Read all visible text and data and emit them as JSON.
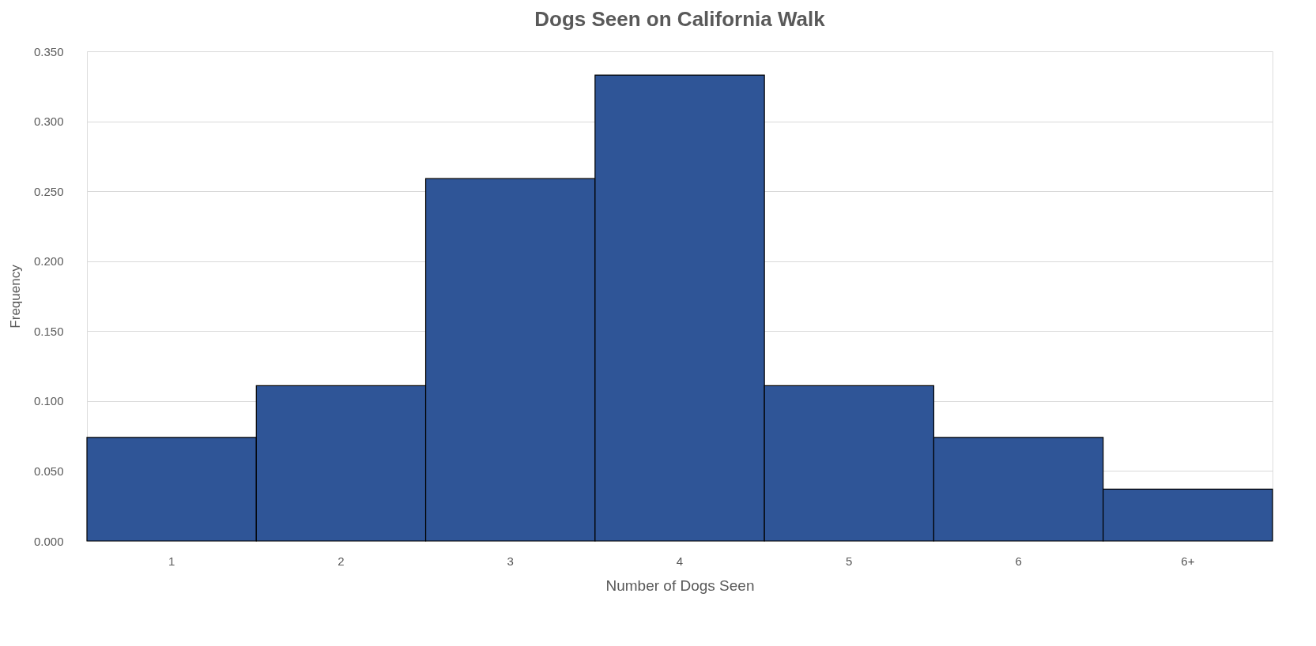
{
  "chart_data": {
    "type": "bar",
    "title": "Dogs Seen on California Walk",
    "xlabel": "Number of Dogs Seen",
    "ylabel": "Frequency",
    "categories": [
      "1",
      "2",
      "3",
      "4",
      "5",
      "6",
      "6+"
    ],
    "values": [
      0.074,
      0.111,
      0.259,
      0.333,
      0.111,
      0.074,
      0.037
    ],
    "color": "#2f5597",
    "ylim": [
      0,
      0.35
    ],
    "yticks": [
      {
        "value": 0,
        "label": "0.000"
      },
      {
        "value": 0.05,
        "label": "0.050"
      },
      {
        "value": 0.1,
        "label": "0.100"
      },
      {
        "value": 0.15,
        "label": "0.150"
      },
      {
        "value": 0.2,
        "label": "0.200"
      },
      {
        "value": 0.25,
        "label": "0.250"
      },
      {
        "value": 0.3,
        "label": "0.300"
      },
      {
        "value": 0.35,
        "label": "0.350"
      }
    ],
    "grid": "y"
  }
}
